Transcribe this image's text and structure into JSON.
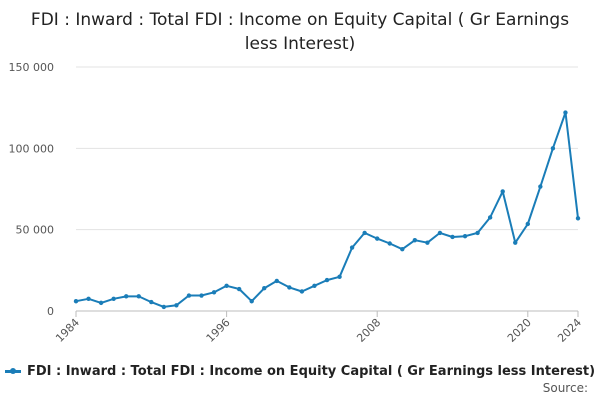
{
  "chart_data": {
    "type": "line",
    "title": "FDI : Inward : Total FDI : Income on Equity Capital ( Gr Earnings less Interest)",
    "xlabel": "",
    "ylabel": "",
    "ylim": [
      0,
      150000
    ],
    "xlim": [
      1984,
      2024
    ],
    "y_ticks": [
      0,
      50000,
      100000,
      150000
    ],
    "y_tick_labels": [
      "0",
      "50 000",
      "100 000",
      "150 000"
    ],
    "x_ticks": [
      1984,
      1996,
      2008,
      2020,
      2024
    ],
    "x_tick_labels": [
      "1984",
      "1996",
      "2008",
      "2020",
      "2024"
    ],
    "grid": true,
    "legend": "bottom-center",
    "color": "#1a7db8",
    "series": [
      {
        "name": "FDI : Inward : Total FDI : Income on Equity Capital ( Gr Earnings less Interest)",
        "x": [
          1984,
          1985,
          1986,
          1987,
          1988,
          1989,
          1990,
          1991,
          1992,
          1993,
          1994,
          1995,
          1996,
          1997,
          1998,
          1999,
          2000,
          2001,
          2002,
          2003,
          2004,
          2005,
          2006,
          2007,
          2008,
          2009,
          2010,
          2011,
          2012,
          2013,
          2014,
          2015,
          2016,
          2017,
          2018,
          2019,
          2020,
          2021,
          2022,
          2023,
          2024
        ],
        "values": [
          6000,
          7500,
          5000,
          7500,
          9000,
          9000,
          5500,
          2500,
          3500,
          9500,
          9500,
          11500,
          15500,
          13500,
          6000,
          14000,
          18500,
          14500,
          12000,
          15500,
          19000,
          21000,
          39000,
          48000,
          44500,
          41500,
          38000,
          43500,
          42000,
          48000,
          45500,
          46000,
          48000,
          57500,
          73500,
          42000,
          53500,
          76500,
          100000,
          122000,
          57000
        ]
      }
    ]
  },
  "legend_label": "FDI : Inward : Total FDI : Income on Equity Capital ( Gr Earnings less Interest)",
  "source_label": "Source:"
}
